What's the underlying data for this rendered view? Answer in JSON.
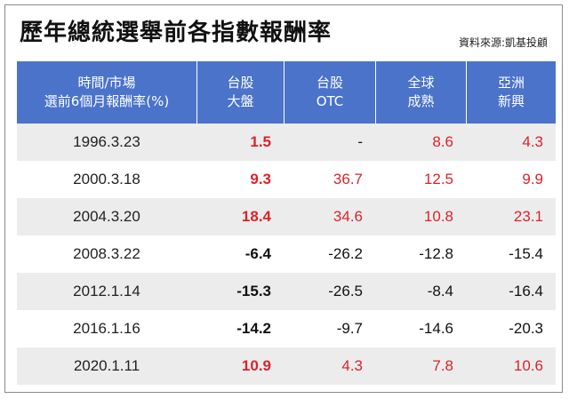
{
  "title": "歷年總統選舉前各指數報酬率",
  "source": "資料來源:凱基投顧",
  "colors": {
    "header_bg": "#4a73c9",
    "positive": "#d9242b",
    "negative": "#111111",
    "row_alt": "#ececec"
  },
  "headers": [
    {
      "line1": "時間/市場",
      "line2": "選前6個月報酬率(%)"
    },
    {
      "line1": "台股",
      "line2": "大盤"
    },
    {
      "line1": "台股",
      "line2": "OTC"
    },
    {
      "line1": "全球",
      "line2": "成熟"
    },
    {
      "line1": "亞洲",
      "line2": "新興"
    }
  ],
  "rows": [
    {
      "date": "1996.3.23",
      "values": [
        "1.5",
        "-",
        "8.6",
        "4.3"
      ]
    },
    {
      "date": "2000.3.18",
      "values": [
        "9.3",
        "36.7",
        "12.5",
        "9.9"
      ]
    },
    {
      "date": "2004.3.20",
      "values": [
        "18.4",
        "34.6",
        "10.8",
        "23.1"
      ]
    },
    {
      "date": "2008.3.22",
      "values": [
        "-6.4",
        "-26.2",
        "-12.8",
        "-15.4"
      ]
    },
    {
      "date": "2012.1.14",
      "values": [
        "-15.3",
        "-26.5",
        "-8.4",
        "-16.4"
      ]
    },
    {
      "date": "2016.1.16",
      "values": [
        "-14.2",
        "-9.7",
        "-14.6",
        "-20.3"
      ]
    },
    {
      "date": "2020.1.11",
      "values": [
        "10.9",
        "4.3",
        "7.8",
        "10.6"
      ]
    }
  ]
}
